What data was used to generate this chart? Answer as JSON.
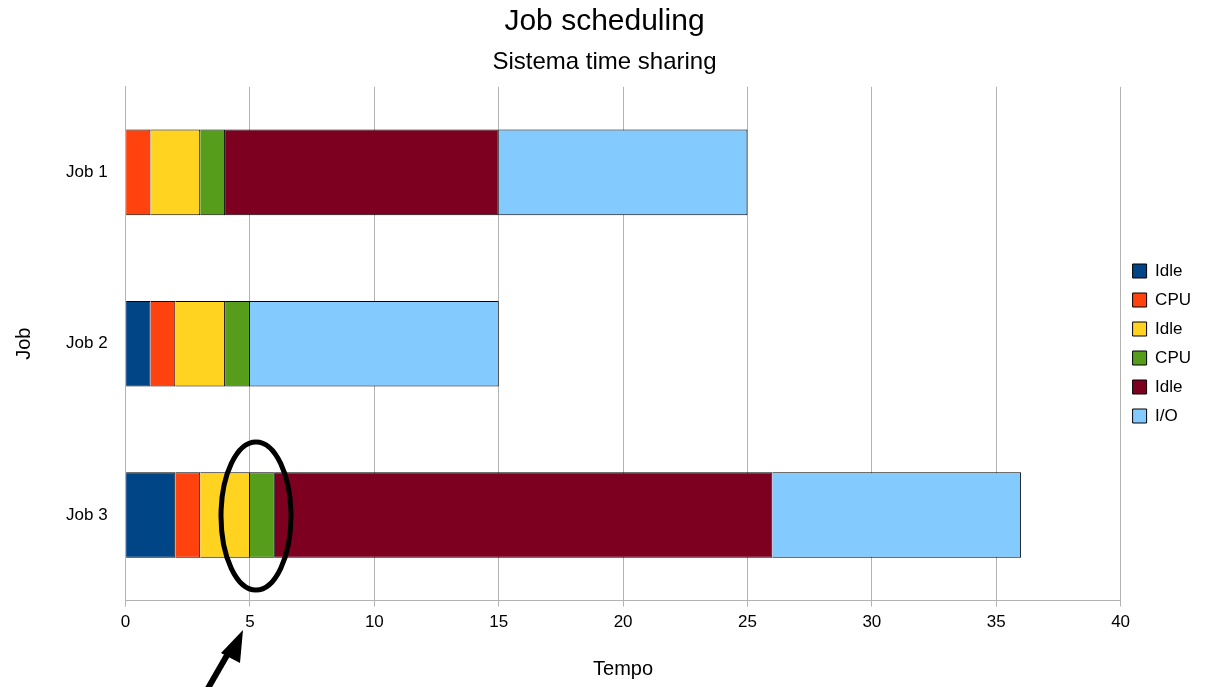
{
  "chart_data": {
    "type": "bar",
    "title": "Job scheduling",
    "subtitle": "Sistema time sharing",
    "xlabel": "Tempo",
    "ylabel": "Job",
    "orientation": "horizontal",
    "stacked": true,
    "categories": [
      "Job 1",
      "Job 2",
      "Job 3"
    ],
    "series": [
      {
        "name": "Idle",
        "color": "#004586",
        "values": [
          0,
          1,
          2
        ]
      },
      {
        "name": "CPU",
        "color": "#ff420e",
        "values": [
          1,
          1,
          1
        ]
      },
      {
        "name": "Idle",
        "color": "#ffd320",
        "values": [
          2,
          2,
          2
        ]
      },
      {
        "name": "CPU",
        "color": "#579d1c",
        "values": [
          1,
          1,
          1
        ]
      },
      {
        "name": "Idle",
        "color": "#7e0021",
        "values": [
          11,
          0,
          20
        ]
      },
      {
        "name": "I/O",
        "color": "#83caff",
        "values": [
          10,
          10,
          10
        ]
      }
    ],
    "xlim": [
      0,
      40
    ],
    "xticks": [
      0,
      5,
      10,
      15,
      20,
      25,
      30,
      35,
      40
    ],
    "grid": "x",
    "legend": "right"
  }
}
